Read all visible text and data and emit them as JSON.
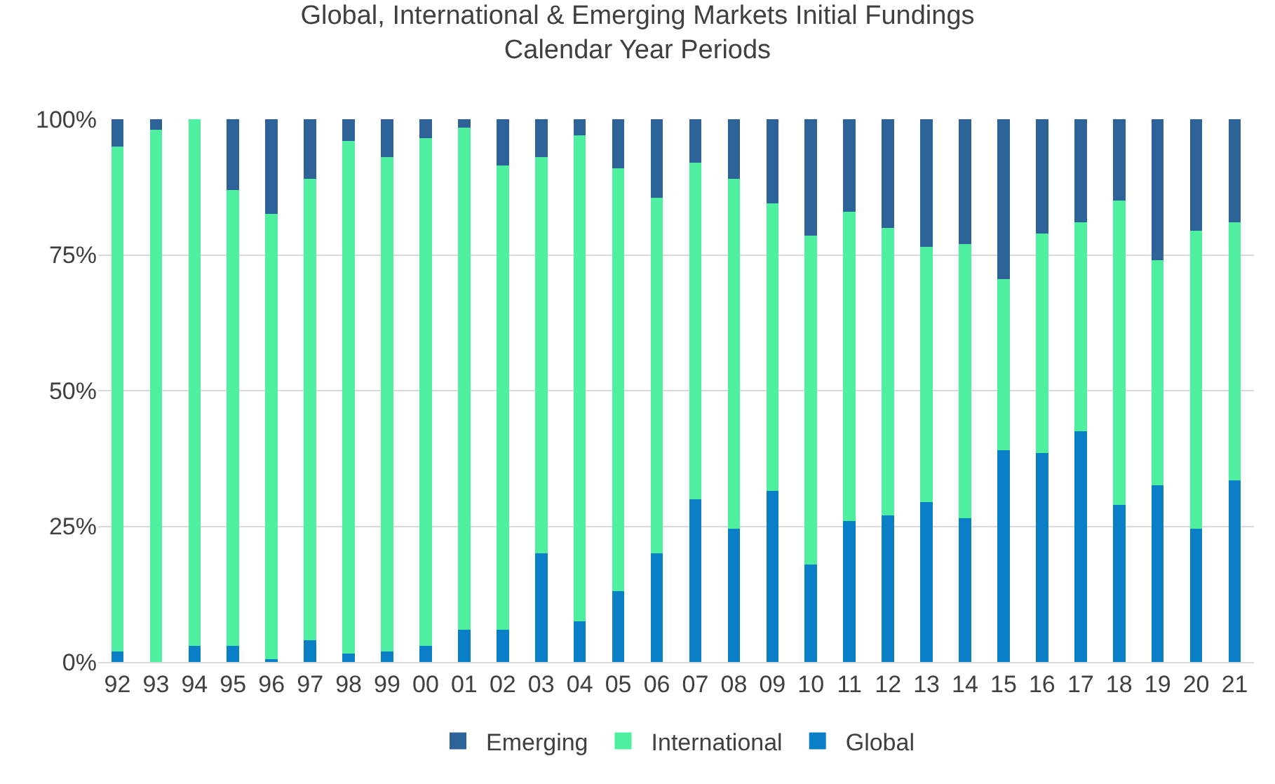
{
  "chart_data": {
    "type": "bar",
    "title": "Global, International & Emerging Markets Initial Fundings",
    "subtitle": "Calendar Year Periods",
    "categories": [
      "92",
      "93",
      "94",
      "95",
      "96",
      "97",
      "98",
      "99",
      "00",
      "01",
      "02",
      "03",
      "04",
      "05",
      "06",
      "07",
      "08",
      "09",
      "10",
      "11",
      "12",
      "13",
      "14",
      "15",
      "16",
      "17",
      "18",
      "19",
      "20",
      "21"
    ],
    "stacked": true,
    "series": [
      {
        "name": "Global",
        "color": "#0a7fc8",
        "values": [
          2,
          0,
          3,
          3,
          0.5,
          4,
          1.5,
          2,
          3,
          6,
          6,
          20,
          7.5,
          13,
          20,
          30,
          24.5,
          31.5,
          18,
          26,
          27,
          29.5,
          26.5,
          39,
          38.5,
          42.5,
          29,
          32.5,
          24.5,
          33.5
        ]
      },
      {
        "name": "International",
        "color": "#4ef0a0",
        "values": [
          93,
          98,
          97,
          84,
          82,
          85,
          94.5,
          91,
          93.5,
          92.5,
          85.5,
          73,
          89.5,
          78,
          65.5,
          62,
          64.5,
          53,
          60.5,
          57,
          53,
          47,
          50.5,
          31.5,
          40.5,
          38.5,
          56,
          41.5,
          55,
          47.5
        ]
      },
      {
        "name": "Emerging",
        "color": "#2d6399",
        "values": [
          5,
          2,
          0,
          13,
          17.5,
          11,
          4,
          7,
          3.5,
          1.5,
          8.5,
          7,
          3,
          9,
          14.5,
          8,
          11,
          15.5,
          21.5,
          17,
          20,
          23.5,
          23,
          29.5,
          21,
          19,
          15,
          26,
          20.5,
          19
        ]
      }
    ],
    "ylim": [
      0,
      100
    ],
    "yticks": [
      {
        "value": 0,
        "label": "0%"
      },
      {
        "value": 25,
        "label": "25%"
      },
      {
        "value": 50,
        "label": "50%"
      },
      {
        "value": 75,
        "label": "75%"
      },
      {
        "value": 100,
        "label": "100%"
      }
    ],
    "grid": "y",
    "legend": "bottom"
  }
}
